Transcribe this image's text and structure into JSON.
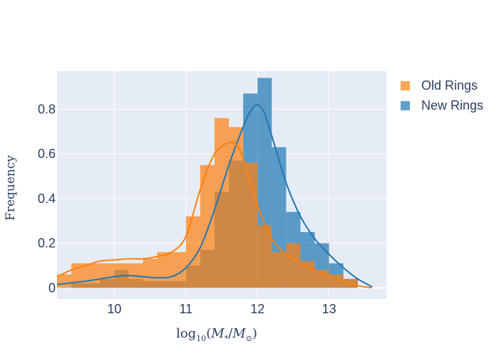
{
  "chart_data": {
    "type": "bar",
    "subtype": "overlaid-histogram-with-kde",
    "title": "",
    "xlabel": "log_10(M_*/M_⊙)",
    "ylabel": "Frequency",
    "xlim": [
      9.2,
      13.8
    ],
    "ylim": [
      -0.05,
      0.97
    ],
    "xticks": [
      10,
      11,
      12,
      13
    ],
    "yticks": [
      0,
      0.2,
      0.4,
      0.6,
      0.8
    ],
    "ytick_labels": [
      "0",
      "0.2",
      "0.4",
      "0.6",
      "0.8"
    ],
    "bin_width": 0.2,
    "grid": true,
    "legend_position": "top-right-outside",
    "series": [
      {
        "name": "New Rings",
        "color": "#1f77b4",
        "bin_starts": [
          9.4,
          9.6,
          9.8,
          10.0,
          10.2,
          10.4,
          10.6,
          10.8,
          11.0,
          11.2,
          11.4,
          11.6,
          11.8,
          12.0,
          12.2,
          12.4,
          12.6,
          12.8,
          13.0,
          13.2
        ],
        "values": [
          0.02,
          0.02,
          0.04,
          0.08,
          0.04,
          0.03,
          0.03,
          0.03,
          0.1,
          0.17,
          0.43,
          0.57,
          0.87,
          0.94,
          0.63,
          0.34,
          0.25,
          0.2,
          0.11,
          0.04
        ],
        "kde_x": [
          9.2,
          9.6,
          10.0,
          10.2,
          10.4,
          10.6,
          10.8,
          11.0,
          11.2,
          11.4,
          11.6,
          11.8,
          11.9,
          12.0,
          12.1,
          12.2,
          12.4,
          12.6,
          12.8,
          13.0,
          13.2,
          13.4,
          13.6
        ],
        "kde_y": [
          0.015,
          0.03,
          0.05,
          0.055,
          0.05,
          0.045,
          0.05,
          0.09,
          0.18,
          0.35,
          0.55,
          0.72,
          0.79,
          0.82,
          0.78,
          0.68,
          0.47,
          0.32,
          0.22,
          0.15,
          0.09,
          0.04,
          0.005
        ]
      },
      {
        "name": "Old Rings",
        "color": "#ff7f0e",
        "bin_starts": [
          9.2,
          9.4,
          9.6,
          9.8,
          10.0,
          10.2,
          10.4,
          10.6,
          10.8,
          11.0,
          11.2,
          11.4,
          11.6,
          11.8,
          12.0,
          12.2,
          12.4,
          12.6,
          12.8,
          13.0,
          13.2
        ],
        "values": [
          0.06,
          0.11,
          0.11,
          0.11,
          0.11,
          0.11,
          0.13,
          0.16,
          0.16,
          0.32,
          0.55,
          0.76,
          0.72,
          0.56,
          0.28,
          0.16,
          0.2,
          0.12,
          0.08,
          0.06,
          0.04
        ],
        "kde_x": [
          9.2,
          9.4,
          9.6,
          9.8,
          10.0,
          10.2,
          10.4,
          10.6,
          10.8,
          11.0,
          11.2,
          11.4,
          11.6,
          11.7,
          11.8,
          12.0,
          12.2,
          12.4,
          12.6,
          12.8,
          13.0,
          13.2,
          13.4,
          13.6
        ],
        "kde_y": [
          0.05,
          0.08,
          0.1,
          0.12,
          0.125,
          0.13,
          0.13,
          0.14,
          0.16,
          0.23,
          0.44,
          0.6,
          0.65,
          0.64,
          0.58,
          0.37,
          0.22,
          0.15,
          0.11,
          0.08,
          0.05,
          0.03,
          0.01,
          0.0
        ]
      }
    ]
  }
}
